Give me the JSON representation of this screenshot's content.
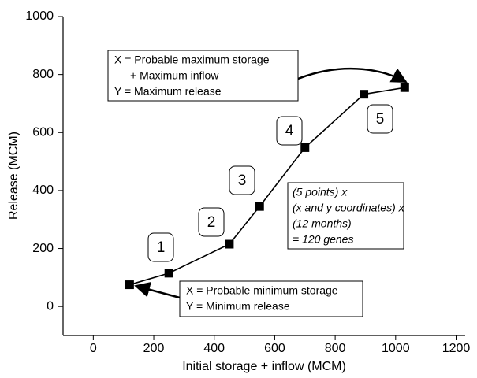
{
  "chart_data": {
    "type": "line",
    "x_label": "Initial storage + inflow (MCM)",
    "y_label": "Release (MCM)",
    "x": [
      120,
      250,
      450,
      550,
      700,
      895,
      1030
    ],
    "series": [
      {
        "name": "Release",
        "color": "#000000",
        "values": [
          75,
          115,
          215,
          345,
          548,
          732,
          755
        ]
      }
    ],
    "xlim": [
      -100,
      1230
    ],
    "xticks": [
      0,
      200,
      400,
      600,
      800,
      1000,
      1200
    ],
    "ylim": [
      -100,
      1000
    ],
    "yticks": [
      0,
      200,
      400,
      600,
      800,
      1000
    ],
    "grid": false,
    "point_labels": [
      "1",
      "2",
      "3",
      "4",
      "5"
    ],
    "note_max": [
      "X = Probable maximum storage",
      "+ Maximum inflow",
      "Y = Maximum release"
    ],
    "note_min": [
      "X = Probable minimum storage",
      "Y = Minimum release"
    ],
    "note_genes": [
      "(5 points) x",
      "(x and y coordinates) x",
      "(12 months)",
      "= 120 genes"
    ]
  }
}
